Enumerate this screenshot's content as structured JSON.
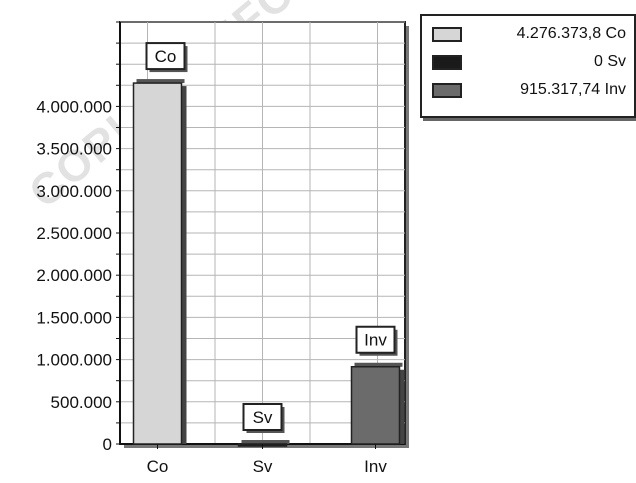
{
  "watermark": "COPIA CONFORME ALL'ORIGINALE DEL SISTEMA DELL'AMMINISTRATORE",
  "chart_data": {
    "type": "bar",
    "title": "",
    "xlabel": "",
    "ylabel": "",
    "categories": [
      "Co",
      "Sv",
      "Inv"
    ],
    "values": [
      4276373.8,
      0,
      915317.74
    ],
    "colors": [
      "#d6d6d6",
      "#1a1a1a",
      "#6b6b6b"
    ],
    "data_labels": [
      "Co",
      "Sv",
      "Inv"
    ],
    "ylim": [
      0,
      5000000
    ],
    "y_ticks": [
      0,
      500000,
      1000000,
      1500000,
      2000000,
      2500000,
      3000000,
      3500000,
      4000000
    ],
    "y_tick_labels": [
      "0",
      "500.000",
      "1.000.000",
      "1.500.000",
      "2.000.000",
      "2.500.000",
      "3.000.000",
      "3.500.000",
      "4.000.000"
    ],
    "grid": true,
    "legend_position": "top-right",
    "legend": [
      {
        "label": "4.276.373,8 Co",
        "color": "#d6d6d6"
      },
      {
        "label": "0 Sv",
        "color": "#1a1a1a"
      },
      {
        "label": "915.317,74 Inv",
        "color": "#6b6b6b"
      }
    ]
  }
}
